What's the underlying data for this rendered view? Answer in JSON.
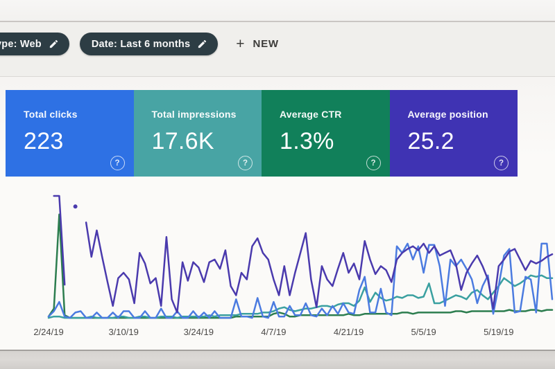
{
  "filter_bar": {
    "chips": [
      {
        "label": "type: Web",
        "icon": "pencil-edit-icon"
      },
      {
        "label": "Date: Last 6 months",
        "icon": "pencil-edit-icon"
      }
    ],
    "new_button": {
      "plus_glyph": "+",
      "label": "NEW"
    }
  },
  "icons": {
    "help_glyph": "?"
  },
  "metric_cards": [
    {
      "title": "Total clicks",
      "value": "223",
      "color": "#2e71e4"
    },
    {
      "title": "Total impressions",
      "value": "17.6K",
      "color": "#48a4a4"
    },
    {
      "title": "Average CTR",
      "value": "1.3%",
      "color": "#11805a"
    },
    {
      "title": "Average position",
      "value": "25.2",
      "color": "#3f33b3"
    }
  ],
  "chart_data": {
    "type": "line",
    "title": "",
    "grid": false,
    "y_axis_shown": false,
    "ylim": [
      0,
      100
    ],
    "value_unit": "percent of plot height (chart displays no y-axis; values estimated from pixels)",
    "x_axis": {
      "tick_labels": [
        "2/24/19",
        "3/10/19",
        "3/24/19",
        "4/7/19",
        "4/21/19",
        "5/5/19",
        "5/19/19"
      ],
      "tick_days": [
        0,
        14,
        28,
        42,
        56,
        70,
        84
      ],
      "days_total": 94
    },
    "series": [
      {
        "name": "Clicks",
        "color": "#4b7be0",
        "values": [
          2,
          6,
          13,
          2,
          1,
          5,
          6,
          1,
          1,
          5,
          1,
          1,
          5,
          1,
          6,
          6,
          1,
          1,
          6,
          1,
          1,
          8,
          1,
          1,
          6,
          1,
          1,
          6,
          1,
          5,
          1,
          6,
          1,
          1,
          1,
          15,
          2,
          2,
          1,
          16,
          2,
          1,
          13,
          2,
          2,
          10,
          3,
          3,
          12,
          3,
          2,
          8,
          3,
          10,
          4,
          12,
          5,
          4,
          22,
          32,
          5,
          5,
          23,
          5,
          3,
          55,
          50,
          57,
          45,
          55,
          35,
          56,
          56,
          40,
          10,
          45,
          40,
          45,
          38,
          30,
          12,
          25,
          33,
          4,
          25,
          48,
          53,
          5,
          6,
          32,
          30,
          5,
          57,
          57,
          15
        ]
      },
      {
        "name": "Impressions",
        "color": "#3aa0a0",
        "values": [
          1,
          2,
          2,
          1,
          1,
          1,
          1,
          1,
          2,
          1,
          1,
          1,
          1,
          2,
          2,
          1,
          1,
          2,
          2,
          1,
          1,
          2,
          2,
          2,
          1,
          2,
          2,
          2,
          2,
          2,
          3,
          2,
          3,
          3,
          3,
          3,
          4,
          4,
          4,
          4,
          5,
          5,
          6,
          8,
          9,
          7,
          6,
          7,
          8,
          8,
          9,
          10,
          10,
          9,
          11,
          12,
          12,
          10,
          14,
          24,
          13,
          20,
          16,
          14,
          15,
          17,
          16,
          18,
          18,
          16,
          17,
          27,
          12,
          12,
          14,
          16,
          18,
          17,
          15,
          20,
          22,
          18,
          15,
          20,
          25,
          31,
          28,
          25,
          27,
          30,
          33,
          32,
          33,
          31,
          31
        ]
      },
      {
        "name": "CTR",
        "color": "#2c7d4f",
        "values": [
          2,
          8,
          79,
          3,
          1,
          1,
          1,
          1,
          1,
          1,
          1,
          1,
          1,
          1,
          1,
          1,
          1,
          1,
          1,
          1,
          1,
          1,
          1,
          1,
          1,
          1,
          1,
          1,
          1,
          1,
          1,
          1,
          1,
          1,
          1,
          2,
          2,
          2,
          2,
          2,
          2,
          2,
          4,
          5,
          4,
          2,
          2,
          3,
          3,
          3,
          3,
          3,
          3,
          3,
          3,
          3,
          4,
          3,
          3,
          4,
          4,
          4,
          4,
          4,
          4,
          4,
          5,
          5,
          4,
          5,
          5,
          5,
          5,
          5,
          5,
          5,
          6,
          6,
          5,
          6,
          6,
          6,
          6,
          6,
          6,
          6,
          7,
          6,
          6,
          6,
          7,
          7,
          6,
          7,
          7
        ]
      },
      {
        "name": "Position",
        "color": "#4a3aad",
        "values": [
          null,
          93,
          93,
          26,
          null,
          85,
          null,
          73,
          47,
          67,
          47,
          28,
          10,
          31,
          35,
          30,
          12,
          50,
          42,
          27,
          31,
          10,
          62,
          15,
          5,
          43,
          29,
          43,
          39,
          28,
          43,
          45,
          38,
          52,
          25,
          18,
          35,
          30,
          55,
          61,
          50,
          45,
          30,
          18,
          40,
          18,
          35,
          50,
          65,
          30,
          9,
          40,
          30,
          25,
          38,
          50,
          35,
          42,
          30,
          59,
          45,
          34,
          40,
          37,
          28,
          45,
          50,
          53,
          55,
          52,
          57,
          50,
          55,
          48,
          50,
          52,
          42,
          22,
          35,
          42,
          48,
          40,
          30,
          8,
          40,
          45,
          51,
          53,
          45,
          37,
          44,
          42,
          44,
          47,
          49
        ]
      }
    ]
  }
}
